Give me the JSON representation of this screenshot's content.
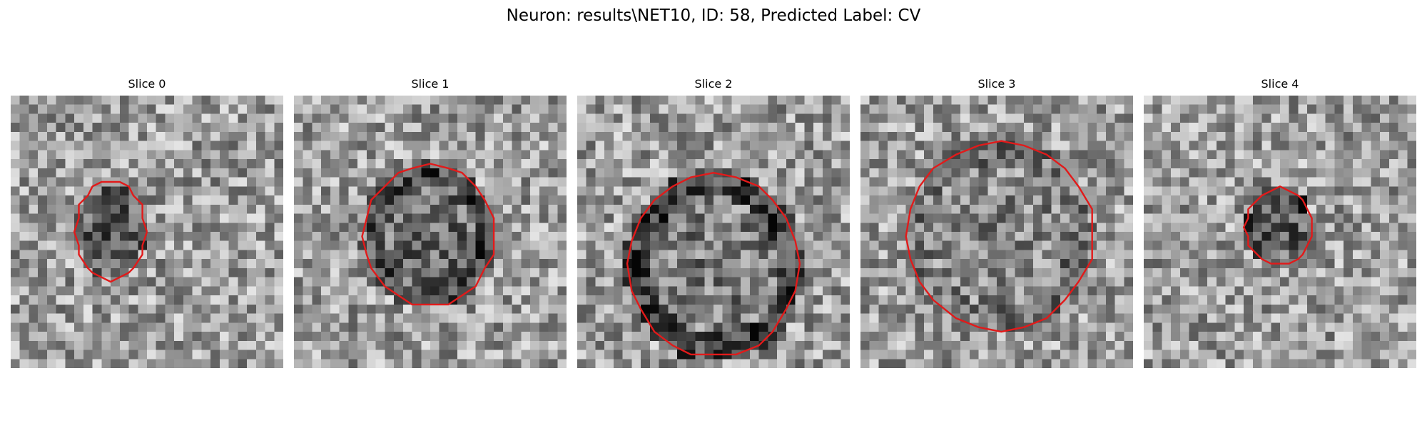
{
  "figure": {
    "title": "Neuron: results\\NET10, ID: 58, Predicted Label: CV",
    "contour_color": "#e21a1a",
    "colormap": "grayscale"
  },
  "panels": [
    {
      "title": "Slice 0"
    },
    {
      "title": "Slice 1"
    },
    {
      "title": "Slice 2"
    },
    {
      "title": "Slice 3"
    },
    {
      "title": "Slice 4"
    }
  ]
}
